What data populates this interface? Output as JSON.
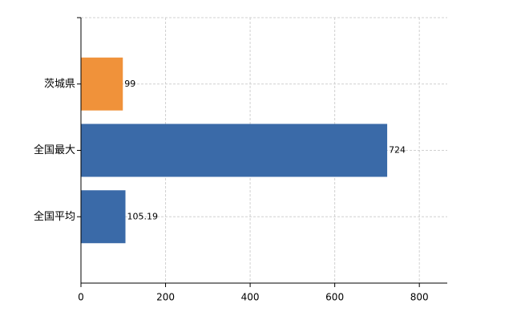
{
  "chart_data": {
    "type": "barh",
    "categories": [
      "茨城県",
      "全国最大",
      "全国平均"
    ],
    "values": [
      99,
      724,
      105.19
    ],
    "colors": [
      "#f0923a",
      "#3a6aa8"
    ],
    "bar_colors": [
      "#f0923a",
      "#3a6aa8",
      "#3a6aa8"
    ],
    "xlim": [
      0,
      866
    ],
    "xticks": [
      0,
      200,
      400,
      600,
      800
    ],
    "grid": true
  }
}
